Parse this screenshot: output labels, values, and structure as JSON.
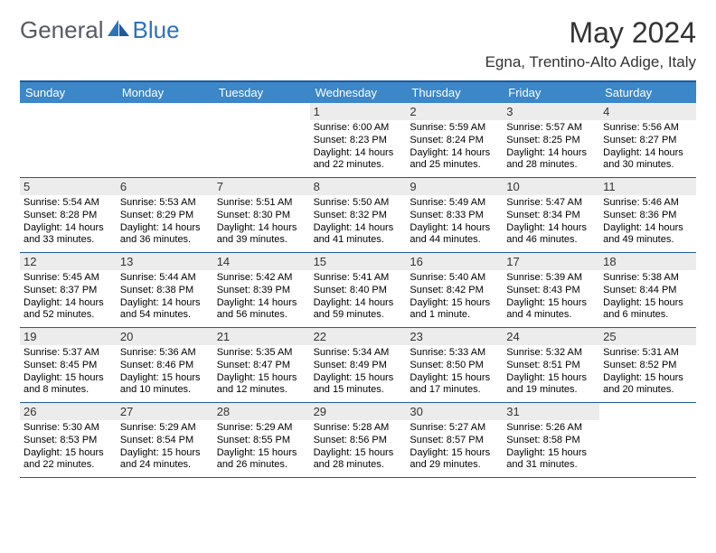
{
  "logo": {
    "part1": "General",
    "part2": "Blue"
  },
  "title": "May 2024",
  "location": "Egna, Trentino-Alto Adige, Italy",
  "colors": {
    "header_bg": "#3b87c8",
    "border": "#1f5a9a",
    "daynum_bg": "#ececec",
    "logo_gray": "#555a63",
    "logo_blue": "#2d72bd"
  },
  "dayNames": [
    "Sunday",
    "Monday",
    "Tuesday",
    "Wednesday",
    "Thursday",
    "Friday",
    "Saturday"
  ],
  "weeks": [
    [
      {
        "n": "",
        "sr": "",
        "ss": "",
        "dl": ""
      },
      {
        "n": "",
        "sr": "",
        "ss": "",
        "dl": ""
      },
      {
        "n": "",
        "sr": "",
        "ss": "",
        "dl": ""
      },
      {
        "n": "1",
        "sr": "Sunrise: 6:00 AM",
        "ss": "Sunset: 8:23 PM",
        "dl": "Daylight: 14 hours and 22 minutes."
      },
      {
        "n": "2",
        "sr": "Sunrise: 5:59 AM",
        "ss": "Sunset: 8:24 PM",
        "dl": "Daylight: 14 hours and 25 minutes."
      },
      {
        "n": "3",
        "sr": "Sunrise: 5:57 AM",
        "ss": "Sunset: 8:25 PM",
        "dl": "Daylight: 14 hours and 28 minutes."
      },
      {
        "n": "4",
        "sr": "Sunrise: 5:56 AM",
        "ss": "Sunset: 8:27 PM",
        "dl": "Daylight: 14 hours and 30 minutes."
      }
    ],
    [
      {
        "n": "5",
        "sr": "Sunrise: 5:54 AM",
        "ss": "Sunset: 8:28 PM",
        "dl": "Daylight: 14 hours and 33 minutes."
      },
      {
        "n": "6",
        "sr": "Sunrise: 5:53 AM",
        "ss": "Sunset: 8:29 PM",
        "dl": "Daylight: 14 hours and 36 minutes."
      },
      {
        "n": "7",
        "sr": "Sunrise: 5:51 AM",
        "ss": "Sunset: 8:30 PM",
        "dl": "Daylight: 14 hours and 39 minutes."
      },
      {
        "n": "8",
        "sr": "Sunrise: 5:50 AM",
        "ss": "Sunset: 8:32 PM",
        "dl": "Daylight: 14 hours and 41 minutes."
      },
      {
        "n": "9",
        "sr": "Sunrise: 5:49 AM",
        "ss": "Sunset: 8:33 PM",
        "dl": "Daylight: 14 hours and 44 minutes."
      },
      {
        "n": "10",
        "sr": "Sunrise: 5:47 AM",
        "ss": "Sunset: 8:34 PM",
        "dl": "Daylight: 14 hours and 46 minutes."
      },
      {
        "n": "11",
        "sr": "Sunrise: 5:46 AM",
        "ss": "Sunset: 8:36 PM",
        "dl": "Daylight: 14 hours and 49 minutes."
      }
    ],
    [
      {
        "n": "12",
        "sr": "Sunrise: 5:45 AM",
        "ss": "Sunset: 8:37 PM",
        "dl": "Daylight: 14 hours and 52 minutes."
      },
      {
        "n": "13",
        "sr": "Sunrise: 5:44 AM",
        "ss": "Sunset: 8:38 PM",
        "dl": "Daylight: 14 hours and 54 minutes."
      },
      {
        "n": "14",
        "sr": "Sunrise: 5:42 AM",
        "ss": "Sunset: 8:39 PM",
        "dl": "Daylight: 14 hours and 56 minutes."
      },
      {
        "n": "15",
        "sr": "Sunrise: 5:41 AM",
        "ss": "Sunset: 8:40 PM",
        "dl": "Daylight: 14 hours and 59 minutes."
      },
      {
        "n": "16",
        "sr": "Sunrise: 5:40 AM",
        "ss": "Sunset: 8:42 PM",
        "dl": "Daylight: 15 hours and 1 minute."
      },
      {
        "n": "17",
        "sr": "Sunrise: 5:39 AM",
        "ss": "Sunset: 8:43 PM",
        "dl": "Daylight: 15 hours and 4 minutes."
      },
      {
        "n": "18",
        "sr": "Sunrise: 5:38 AM",
        "ss": "Sunset: 8:44 PM",
        "dl": "Daylight: 15 hours and 6 minutes."
      }
    ],
    [
      {
        "n": "19",
        "sr": "Sunrise: 5:37 AM",
        "ss": "Sunset: 8:45 PM",
        "dl": "Daylight: 15 hours and 8 minutes."
      },
      {
        "n": "20",
        "sr": "Sunrise: 5:36 AM",
        "ss": "Sunset: 8:46 PM",
        "dl": "Daylight: 15 hours and 10 minutes."
      },
      {
        "n": "21",
        "sr": "Sunrise: 5:35 AM",
        "ss": "Sunset: 8:47 PM",
        "dl": "Daylight: 15 hours and 12 minutes."
      },
      {
        "n": "22",
        "sr": "Sunrise: 5:34 AM",
        "ss": "Sunset: 8:49 PM",
        "dl": "Daylight: 15 hours and 15 minutes."
      },
      {
        "n": "23",
        "sr": "Sunrise: 5:33 AM",
        "ss": "Sunset: 8:50 PM",
        "dl": "Daylight: 15 hours and 17 minutes."
      },
      {
        "n": "24",
        "sr": "Sunrise: 5:32 AM",
        "ss": "Sunset: 8:51 PM",
        "dl": "Daylight: 15 hours and 19 minutes."
      },
      {
        "n": "25",
        "sr": "Sunrise: 5:31 AM",
        "ss": "Sunset: 8:52 PM",
        "dl": "Daylight: 15 hours and 20 minutes."
      }
    ],
    [
      {
        "n": "26",
        "sr": "Sunrise: 5:30 AM",
        "ss": "Sunset: 8:53 PM",
        "dl": "Daylight: 15 hours and 22 minutes."
      },
      {
        "n": "27",
        "sr": "Sunrise: 5:29 AM",
        "ss": "Sunset: 8:54 PM",
        "dl": "Daylight: 15 hours and 24 minutes."
      },
      {
        "n": "28",
        "sr": "Sunrise: 5:29 AM",
        "ss": "Sunset: 8:55 PM",
        "dl": "Daylight: 15 hours and 26 minutes."
      },
      {
        "n": "29",
        "sr": "Sunrise: 5:28 AM",
        "ss": "Sunset: 8:56 PM",
        "dl": "Daylight: 15 hours and 28 minutes."
      },
      {
        "n": "30",
        "sr": "Sunrise: 5:27 AM",
        "ss": "Sunset: 8:57 PM",
        "dl": "Daylight: 15 hours and 29 minutes."
      },
      {
        "n": "31",
        "sr": "Sunrise: 5:26 AM",
        "ss": "Sunset: 8:58 PM",
        "dl": "Daylight: 15 hours and 31 minutes."
      },
      {
        "n": "",
        "sr": "",
        "ss": "",
        "dl": ""
      }
    ]
  ]
}
